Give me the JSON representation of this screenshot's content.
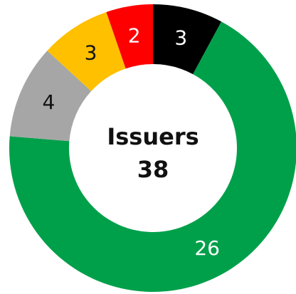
{
  "chart_data": {
    "type": "donut",
    "values": [
      3,
      26,
      4,
      3,
      2
    ],
    "colors": [
      "#000000",
      "#00a04a",
      "#a6a6a6",
      "#ffc000",
      "#ff0000"
    ],
    "center_title": "Issuers",
    "center_value": 38
  }
}
